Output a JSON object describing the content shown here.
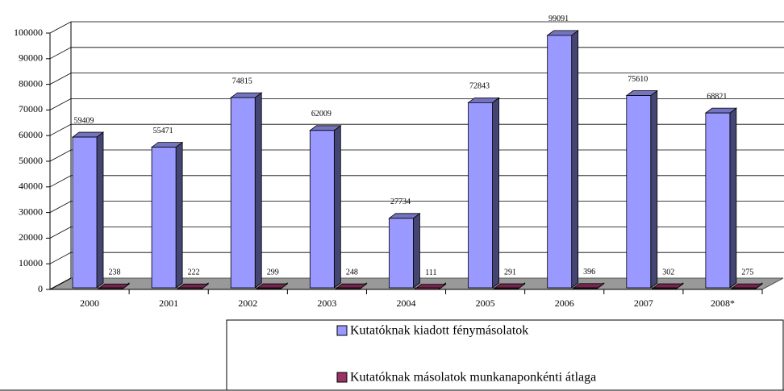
{
  "chart_data": {
    "type": "bar3d",
    "categories": [
      "2000",
      "2001",
      "2002",
      "2003",
      "2004",
      "2005",
      "2006",
      "2007",
      "2008*"
    ],
    "series": [
      {
        "name": "Kutatóknak kiadott fénymásolatok",
        "color": "#9999ff",
        "values": [
          59409,
          55471,
          74815,
          62009,
          27734,
          72843,
          99091,
          75610,
          68821
        ]
      },
      {
        "name": "Kutatóknak másolatok munkanaponkénti átlaga",
        "color": "#993366",
        "values": [
          238,
          222,
          299,
          248,
          111,
          291,
          396,
          302,
          275
        ]
      }
    ],
    "ylim": [
      0,
      100000
    ],
    "yticks": [
      0,
      10000,
      20000,
      30000,
      40000,
      50000,
      60000,
      70000,
      80000,
      90000,
      100000
    ],
    "grid": true,
    "legend": "bottom"
  }
}
